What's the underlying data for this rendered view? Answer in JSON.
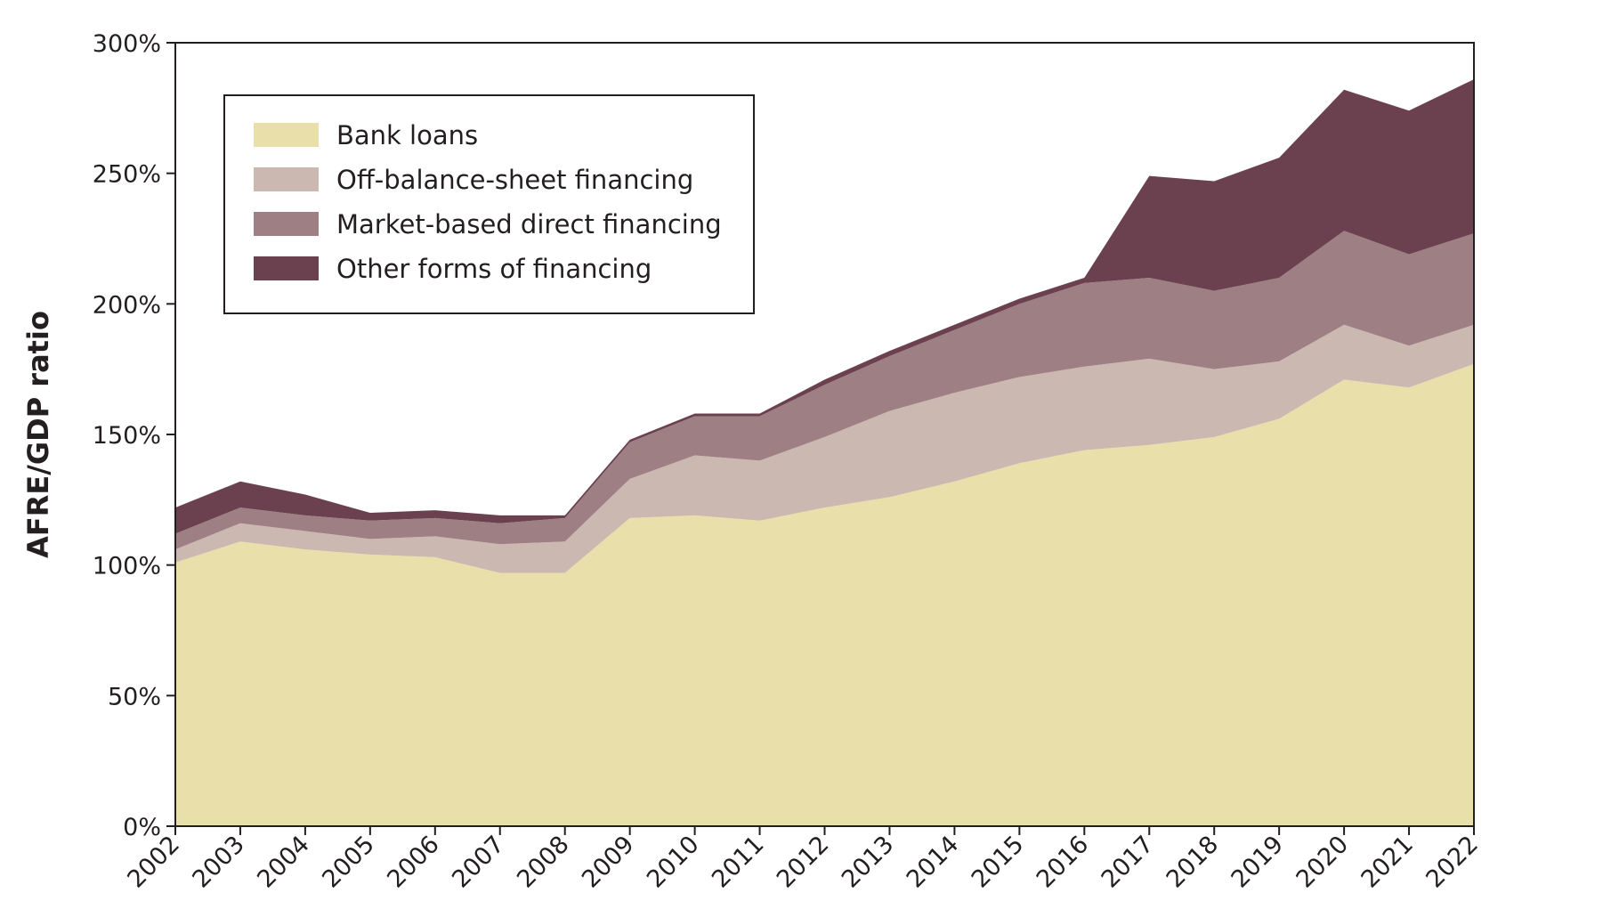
{
  "chart_data": {
    "type": "area",
    "stacked": true,
    "ylabel": "AFRE/GDP ratio",
    "xlabel": "",
    "ylim": [
      0,
      300
    ],
    "yticks": [
      0,
      50,
      100,
      150,
      200,
      250,
      300
    ],
    "ytick_labels": [
      "0%",
      "50%",
      "100%",
      "150%",
      "200%",
      "250%",
      "300%"
    ],
    "categories": [
      "2002",
      "2003",
      "2004",
      "2005",
      "2006",
      "2007",
      "2008",
      "2009",
      "2010",
      "2011",
      "2012",
      "2013",
      "2014",
      "2015",
      "2016",
      "2017",
      "2018",
      "2019",
      "2020",
      "2021",
      "2022"
    ],
    "legend_position": "top-left",
    "series": [
      {
        "name": "Bank loans",
        "color": "#e8dfab",
        "values": [
          101,
          109,
          106,
          104,
          103,
          97,
          97,
          118,
          119,
          117,
          122,
          126,
          132,
          139,
          144,
          146,
          149,
          156,
          171,
          168,
          177
        ]
      },
      {
        "name": "Off-balance-sheet financing",
        "color": "#cbb8b0",
        "values": [
          5,
          7,
          7,
          6,
          8,
          11,
          12,
          15,
          23,
          23,
          27,
          33,
          34,
          33,
          32,
          33,
          26,
          22,
          21,
          16,
          15
        ]
      },
      {
        "name": "Market-based direct financing",
        "color": "#9e8084",
        "values": [
          6,
          6,
          6,
          7,
          7,
          8,
          9,
          14,
          15,
          17,
          20,
          21,
          24,
          28,
          32,
          31,
          30,
          32,
          36,
          35,
          35
        ]
      },
      {
        "name": "Other forms of financing",
        "color": "#6b4150",
        "values": [
          10,
          10,
          8,
          3,
          3,
          3,
          1,
          1,
          1,
          1,
          2,
          2,
          2,
          2,
          2,
          39,
          42,
          46,
          54,
          55,
          59
        ]
      }
    ]
  }
}
